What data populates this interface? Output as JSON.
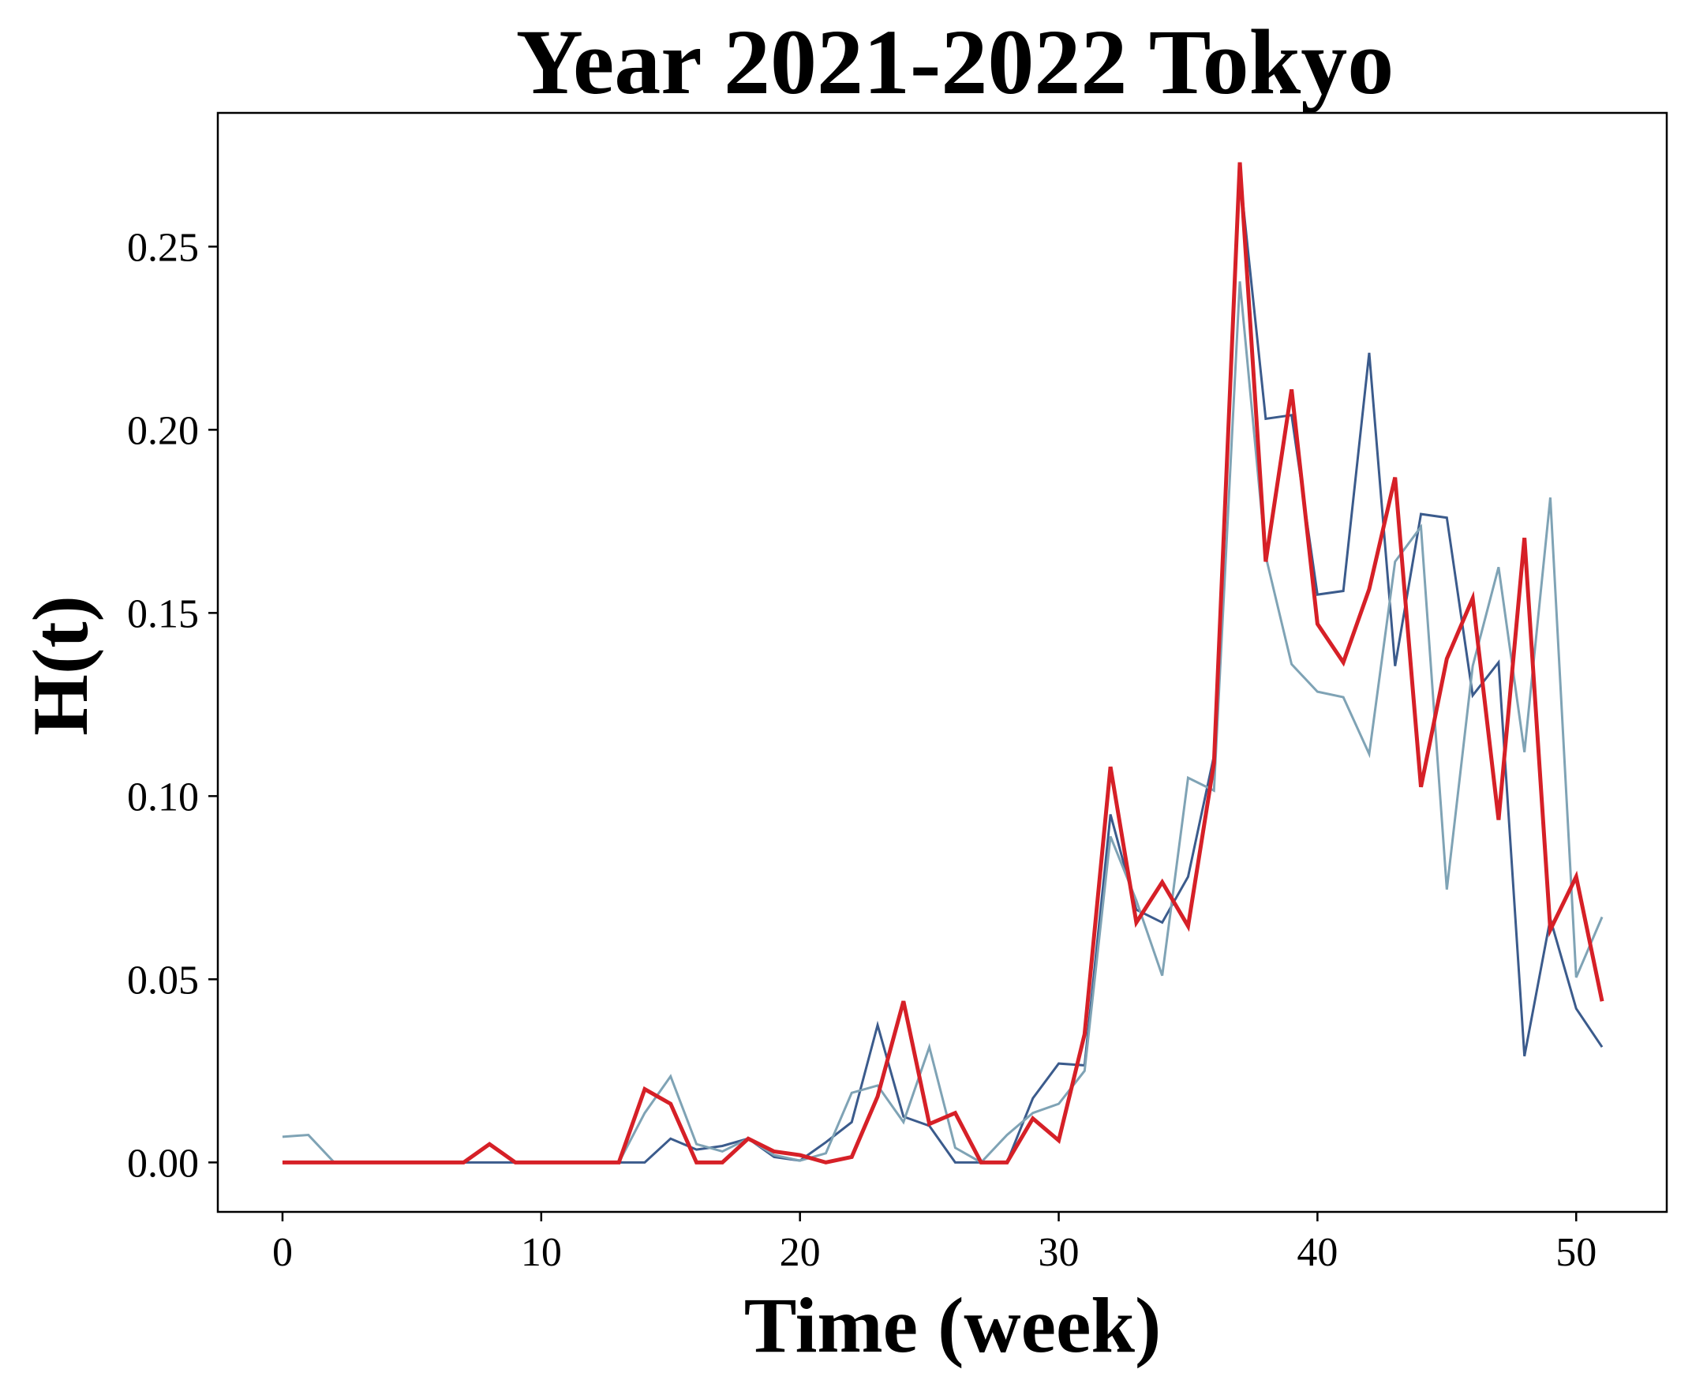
{
  "chart_data": {
    "type": "line",
    "title": "Year 2021-2022 Tokyo",
    "xlabel": "Time (week)",
    "ylabel": "H(t)",
    "xlim": [
      -2.5,
      53.5
    ],
    "ylim": [
      -0.0135,
      0.2865
    ],
    "x_ticks": [
      0,
      10,
      20,
      30,
      40,
      50
    ],
    "x_tick_labels": [
      "0",
      "10",
      "20",
      "30",
      "40",
      "50"
    ],
    "y_ticks": [
      0.0,
      0.05,
      0.1,
      0.15,
      0.2,
      0.25
    ],
    "y_tick_labels": [
      "0.00",
      "0.05",
      "0.10",
      "0.15",
      "0.20",
      "0.25"
    ],
    "grid": false,
    "legend": false,
    "x": [
      0,
      1,
      2,
      3,
      4,
      5,
      6,
      7,
      8,
      9,
      10,
      11,
      12,
      13,
      14,
      15,
      16,
      17,
      18,
      19,
      20,
      21,
      22,
      23,
      24,
      25,
      26,
      27,
      28,
      29,
      30,
      31,
      32,
      33,
      34,
      35,
      36,
      37,
      38,
      39,
      40,
      41,
      42,
      43,
      44,
      45,
      46,
      47,
      48,
      49,
      50,
      51
    ],
    "series": [
      {
        "name": "series-dark-blue",
        "color": "#3b5b8c",
        "width": 3,
        "values": [
          0,
          0,
          0,
          0,
          0,
          0,
          0,
          0,
          0,
          0,
          0,
          0,
          0,
          0,
          0,
          0.0065,
          0.0035,
          0.0045,
          0.0065,
          0.0015,
          0.0005,
          0.0055,
          0.011,
          0.0375,
          0.0125,
          0.01,
          0,
          0,
          0,
          0.0175,
          0.027,
          0.0265,
          0.095,
          0.069,
          0.0655,
          0.078,
          0.111,
          0.27,
          0.203,
          0.204,
          0.155,
          0.156,
          0.221,
          0.1355,
          0.177,
          0.176,
          0.1275,
          0.1365,
          0.029,
          0.0665,
          0.042,
          0.0315
        ]
      },
      {
        "name": "series-light-blue",
        "color": "#7fa3b5",
        "width": 3,
        "values": [
          0.007,
          0.0075,
          0,
          0,
          0,
          0,
          0,
          0,
          0.005,
          0,
          0,
          0,
          0,
          0,
          0.0135,
          0.0235,
          0.005,
          0.003,
          0.0065,
          0.002,
          0.0005,
          0.0025,
          0.019,
          0.021,
          0.011,
          0.0315,
          0.004,
          0,
          0.0075,
          0.0135,
          0.016,
          0.025,
          0.089,
          0.0715,
          0.051,
          0.105,
          0.1015,
          0.2405,
          0.1655,
          0.136,
          0.1285,
          0.127,
          0.1115,
          0.164,
          0.1735,
          0.0745,
          0.1355,
          0.1625,
          0.112,
          0.1815,
          0.0505,
          0.067
        ]
      },
      {
        "name": "series-red",
        "color": "#d62027",
        "width": 5,
        "values": [
          0,
          0,
          0,
          0,
          0,
          0,
          0,
          0,
          0.005,
          0,
          0,
          0,
          0,
          0,
          0.02,
          0.016,
          0,
          0,
          0.0065,
          0.003,
          0.002,
          0,
          0.0015,
          0.018,
          0.044,
          0.0105,
          0.0135,
          0,
          0,
          0.012,
          0.006,
          0.035,
          0.108,
          0.0655,
          0.0765,
          0.0645,
          0.109,
          0.273,
          0.164,
          0.211,
          0.147,
          0.1365,
          0.1565,
          0.187,
          0.1025,
          0.1375,
          0.154,
          0.0935,
          0.1705,
          0.0635,
          0.078,
          0.044
        ]
      }
    ]
  }
}
